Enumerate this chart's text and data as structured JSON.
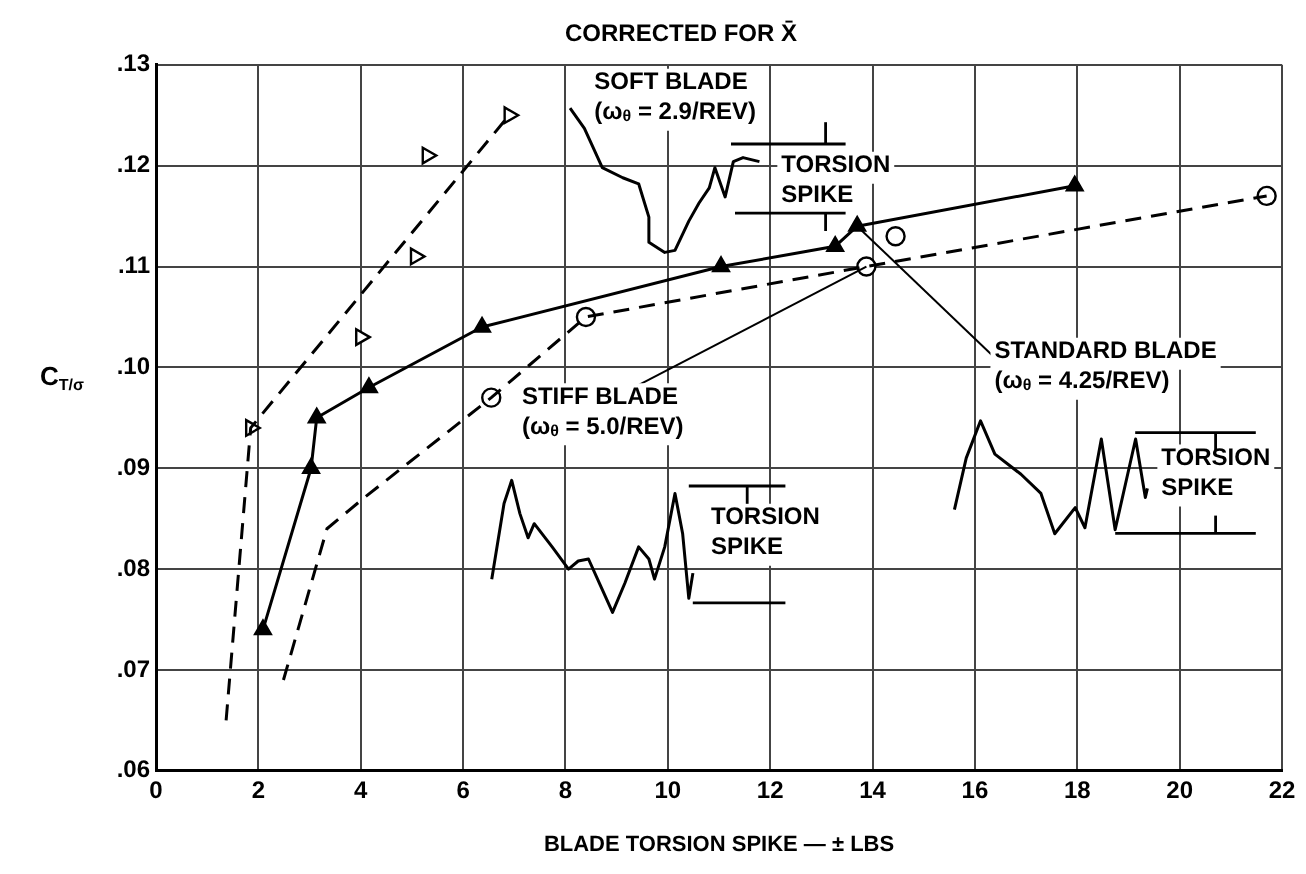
{
  "chart_data": {
    "type": "line",
    "title": "CORRECTED FOR X̄",
    "xlabel": "BLADE TORSION SPIKE — ± LBS",
    "ylabel": "C$_{T/σ}$",
    "xlim": [
      0,
      22
    ],
    "xticks": [
      0,
      2,
      4,
      6,
      8,
      10,
      12,
      14,
      16,
      18,
      20,
      22
    ],
    "ylim": [
      0.06,
      0.13
    ],
    "yticks": [
      {
        "value": 0.06,
        "label": ".06"
      },
      {
        "value": 0.07,
        "label": ".07"
      },
      {
        "value": 0.08,
        "label": ".08"
      },
      {
        "value": 0.09,
        "label": ".09"
      },
      {
        "value": 0.1,
        "label": ".10"
      },
      {
        "value": 0.11,
        "label": ".11"
      },
      {
        "value": 0.12,
        "label": ".12"
      },
      {
        "value": 0.13,
        "label": ".13"
      }
    ],
    "grid": true,
    "legend": false,
    "series": [
      {
        "color": "#000000",
        "line_style": "dashed",
        "marker": "none",
        "x": [
          1.37,
          1.85,
          6.9
        ],
        "values": [
          0.065,
          0.094,
          0.125
        ]
      },
      {
        "type": "scatter",
        "color": "#000000",
        "marker": "triangle",
        "x": [
          1.85,
          4.0,
          5.07,
          5.3,
          6.9
        ],
        "values": [
          0.094,
          0.103,
          0.111,
          0.121,
          0.125
        ]
      },
      {
        "color": "#000000",
        "line_style": "solid",
        "marker": "triangle",
        "x": [
          2.09,
          3.03,
          3.14,
          4.16,
          6.37,
          11.04,
          13.27,
          13.7,
          17.95
        ],
        "values": [
          0.074,
          0.09,
          0.095,
          0.098,
          0.104,
          0.11,
          0.112,
          0.114,
          0.118
        ]
      },
      {
        "color": "#000000",
        "line_style": "dashed",
        "marker": "none",
        "x": [
          2.49,
          3.34,
          4.05,
          6.55,
          8.4,
          13.88,
          21.7
        ],
        "values": [
          0.069,
          0.084,
          0.087,
          0.097,
          0.105,
          0.11,
          0.117
        ]
      },
      {
        "type": "scatter",
        "color": "#000000",
        "marker": "circle",
        "x": [
          6.55,
          8.4,
          13.88,
          14.45,
          21.7
        ],
        "values": [
          0.097,
          0.105,
          0.11,
          0.113,
          0.117
        ]
      },
      {
        "color": "#000000",
        "line_style": "solid",
        "marker": "none",
        "x": [
          8.09,
          8.37,
          8.72,
          9.12,
          9.43,
          9.63,
          9.63,
          9.94,
          10.14,
          10.41,
          10.61,
          10.81,
          10.92,
          11.12,
          11.28,
          11.47,
          11.79
        ],
        "values": [
          0.1257,
          0.1237,
          0.1198,
          0.1188,
          0.1182,
          0.1149,
          0.1124,
          0.1114,
          0.1116,
          0.1145,
          0.1163,
          0.1178,
          0.1198,
          0.1169,
          0.1204,
          0.1208,
          0.1204
        ]
      },
      {
        "color": "#000000",
        "line_style": "solid",
        "marker": "none",
        "x": [
          6.56,
          6.8,
          6.95,
          7.11,
          7.27,
          7.39,
          7.74,
          8.06,
          8.25,
          8.45,
          8.68,
          8.92,
          9.16,
          9.43,
          9.63,
          9.74,
          9.94,
          10.14,
          10.29,
          10.41,
          10.49
        ],
        "values": [
          0.079,
          0.0865,
          0.0888,
          0.0855,
          0.0831,
          0.0845,
          0.0822,
          0.08,
          0.0808,
          0.081,
          0.0784,
          0.0757,
          0.0786,
          0.0822,
          0.081,
          0.079,
          0.0822,
          0.0875,
          0.0835,
          0.0771,
          0.0796
        ]
      },
      {
        "color": "#000000",
        "line_style": "solid",
        "marker": "none",
        "x": [
          15.6,
          15.83,
          16.11,
          16.39,
          16.9,
          17.29,
          17.56,
          17.96,
          18.15,
          18.47,
          18.74,
          19.14,
          19.33,
          19.37
        ],
        "values": [
          0.0859,
          0.091,
          0.0947,
          0.0914,
          0.0894,
          0.0875,
          0.0835,
          0.0861,
          0.0841,
          0.0929,
          0.0839,
          0.0929,
          0.0871,
          0.088
        ]
      }
    ],
    "annotations": [
      "SOFT BLADE\n(ω$_{θ}$ = 2.9/REV)",
      "TORSION\nSPIKE",
      {
        "text": "STIFF BLADE\n(ω$_{θ}$ = 5.0/REV)",
        "x": 13.88,
        "y": 0.11
      },
      {
        "text": "STANDARD BLADE\n(ω$_{θ}$ = 4.25/REV)",
        "x": 13.7,
        "y": 0.114
      },
      "TORSION\nSPIKE",
      "TORSION\nSPIKE"
    ]
  }
}
